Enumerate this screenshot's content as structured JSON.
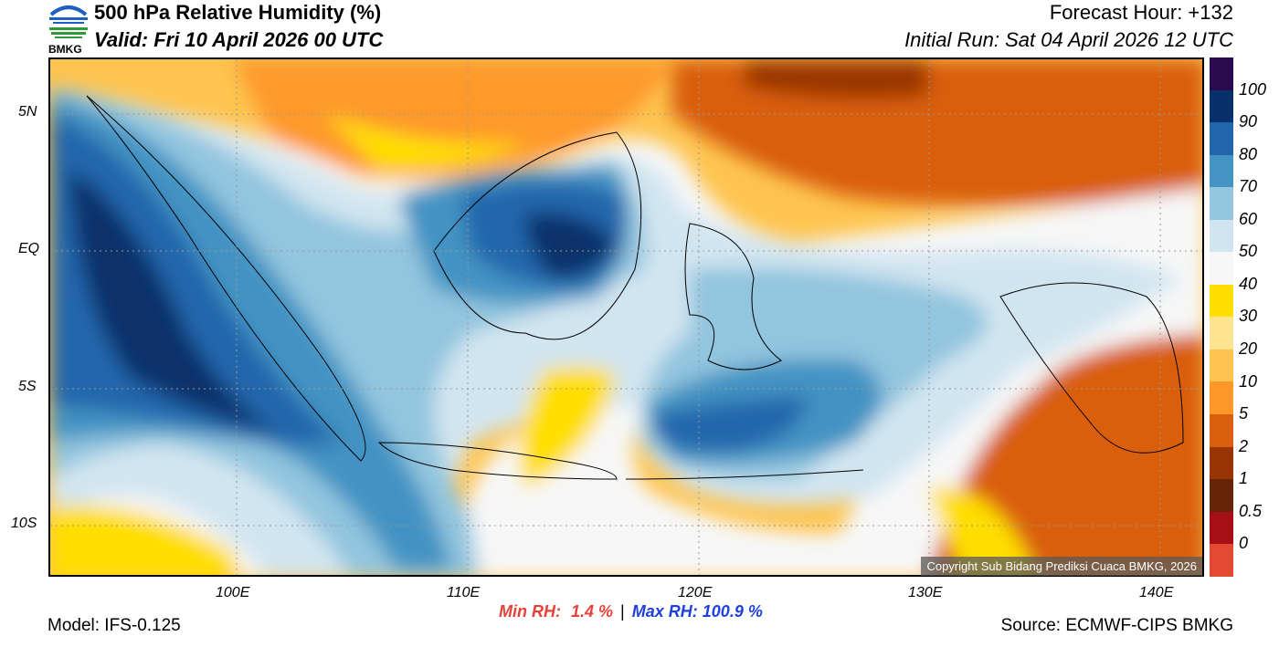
{
  "header": {
    "title": "500 hPa Relative Humidity (%)",
    "valid": "Valid: Fri 10 April 2026 00 UTC",
    "forecast_hour": "Forecast Hour: +132",
    "initial_run": "Initial Run: Sat 04 April 2026 12 UTC",
    "logo_text": "BMKG"
  },
  "axes": {
    "lat_labels": [
      "5N",
      "EQ",
      "5S",
      "10S"
    ],
    "lon_labels": [
      "100E",
      "110E",
      "120E",
      "130E",
      "140E"
    ]
  },
  "colorbar": {
    "labels": [
      "100",
      "90",
      "80",
      "70",
      "60",
      "50",
      "40",
      "30",
      "20",
      "10",
      "5",
      "2",
      "1",
      "0.5",
      "0"
    ],
    "colors": [
      "#2b0a4f",
      "#08306b",
      "#2166ac",
      "#4393c3",
      "#92c5de",
      "#d1e5f0",
      "#f7f7f7",
      "#ffde00",
      "#fee391",
      "#fec44f",
      "#fe9929",
      "#d95f0e",
      "#993404",
      "#662506",
      "#a50f15",
      "#e34a33"
    ]
  },
  "footer": {
    "copyright": "Copyright Sub Bidang Prediksi Cuaca BMKG, 2026",
    "min_label": "Min RH:",
    "min_value": "1.4 %",
    "separator": "|",
    "max_label": "Max RH:",
    "max_value": "100.9 %",
    "model": "Model: IFS-0.125",
    "source": "Source: ECMWF-CIPS BMKG"
  }
}
